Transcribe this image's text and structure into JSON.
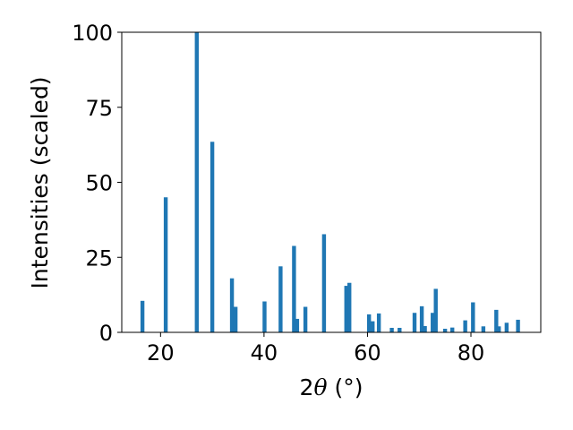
{
  "chart_data": {
    "type": "bar",
    "title": "",
    "xlabel": {
      "prefix": "2",
      "symbol": "θ",
      "suffix": " (°)"
    },
    "ylabel": "Intensities (scaled)",
    "xlim": [
      12.5,
      93.5
    ],
    "ylim": [
      0,
      100
    ],
    "xticks": [
      20,
      40,
      60,
      80
    ],
    "yticks": [
      0,
      25,
      50,
      75,
      100
    ],
    "bar_color": "#1f77b4",
    "grid": false,
    "bars": [
      {
        "x": 16.5,
        "y": 10.5
      },
      {
        "x": 21.0,
        "y": 45.0
      },
      {
        "x": 27.0,
        "y": 100.0
      },
      {
        "x": 30.0,
        "y": 63.5
      },
      {
        "x": 33.8,
        "y": 18.0
      },
      {
        "x": 34.5,
        "y": 8.5
      },
      {
        "x": 40.1,
        "y": 10.3
      },
      {
        "x": 43.2,
        "y": 22.0
      },
      {
        "x": 45.8,
        "y": 28.8
      },
      {
        "x": 46.4,
        "y": 4.5
      },
      {
        "x": 48.0,
        "y": 8.5
      },
      {
        "x": 51.6,
        "y": 32.7
      },
      {
        "x": 55.9,
        "y": 15.5
      },
      {
        "x": 56.5,
        "y": 16.5
      },
      {
        "x": 60.3,
        "y": 6.0
      },
      {
        "x": 61.0,
        "y": 3.7
      },
      {
        "x": 62.2,
        "y": 6.3
      },
      {
        "x": 64.7,
        "y": 1.5
      },
      {
        "x": 66.2,
        "y": 1.5
      },
      {
        "x": 69.1,
        "y": 6.5
      },
      {
        "x": 70.5,
        "y": 8.7
      },
      {
        "x": 71.1,
        "y": 2.1
      },
      {
        "x": 72.6,
        "y": 6.5
      },
      {
        "x": 73.2,
        "y": 14.5
      },
      {
        "x": 75.0,
        "y": 1.2
      },
      {
        "x": 76.4,
        "y": 1.6
      },
      {
        "x": 78.9,
        "y": 4.0
      },
      {
        "x": 80.4,
        "y": 10.0
      },
      {
        "x": 82.4,
        "y": 2.0
      },
      {
        "x": 84.9,
        "y": 7.5
      },
      {
        "x": 85.4,
        "y": 2.0
      },
      {
        "x": 86.9,
        "y": 3.2
      },
      {
        "x": 89.1,
        "y": 4.2
      }
    ]
  }
}
